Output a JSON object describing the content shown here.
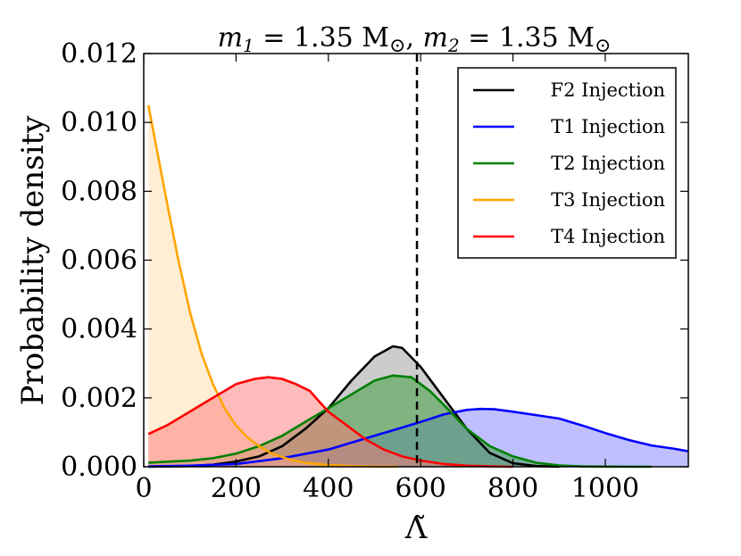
{
  "chart_data": {
    "type": "area",
    "title_parts": {
      "m1": "m",
      "m1_sub": "1",
      "eq1": " = 1.35 M",
      "m2": "m",
      "m2_sub": "2",
      "eq2": " = 1.35 M",
      "sun": "⊙"
    },
    "xlabel": "Λ̃",
    "ylabel": "Probability density",
    "xlim": [
      0,
      1180
    ],
    "ylim": [
      0,
      0.012
    ],
    "xticks": [
      0,
      200,
      400,
      600,
      800,
      1000
    ],
    "xtick_labels": [
      "0",
      "200",
      "400",
      "600",
      "800",
      "1000"
    ],
    "yticks": [
      0,
      0.002,
      0.004,
      0.006,
      0.008,
      0.01,
      0.012
    ],
    "ytick_labels": [
      "0.000",
      "0.002",
      "0.004",
      "0.006",
      "0.008",
      "0.010",
      "0.012"
    ],
    "vline": {
      "x": 592,
      "style": "dashed",
      "color": "#000000"
    },
    "legend_position": "top-right",
    "series": [
      {
        "name": "F2 Injection",
        "color": "#000000",
        "fill": "#999999",
        "points": [
          [
            10,
            0
          ],
          [
            100,
            2e-05
          ],
          [
            150,
            6e-05
          ],
          [
            200,
            0.00015
          ],
          [
            250,
            0.0003
          ],
          [
            300,
            0.0006
          ],
          [
            350,
            0.0011
          ],
          [
            400,
            0.0017
          ],
          [
            450,
            0.0025
          ],
          [
            500,
            0.0032
          ],
          [
            540,
            0.0035
          ],
          [
            560,
            0.00345
          ],
          [
            600,
            0.0029
          ],
          [
            650,
            0.002
          ],
          [
            700,
            0.0011
          ],
          [
            750,
            0.0004
          ],
          [
            800,
            0.0001
          ],
          [
            850,
            2e-05
          ],
          [
            900,
            0
          ]
        ]
      },
      {
        "name": "T1 Injection",
        "color": "#0000ff",
        "fill": "#7f7fff",
        "points": [
          [
            10,
            1e-05
          ],
          [
            100,
            3e-05
          ],
          [
            200,
            8e-05
          ],
          [
            300,
            0.00025
          ],
          [
            400,
            0.0005
          ],
          [
            500,
            0.0009
          ],
          [
            550,
            0.0011
          ],
          [
            600,
            0.0013
          ],
          [
            650,
            0.00152
          ],
          [
            700,
            0.00165
          ],
          [
            730,
            0.00168
          ],
          [
            760,
            0.00167
          ],
          [
            800,
            0.0016
          ],
          [
            850,
            0.0015
          ],
          [
            900,
            0.0014
          ],
          [
            950,
            0.0012
          ],
          [
            1000,
            0.00098
          ],
          [
            1050,
            0.00078
          ],
          [
            1100,
            0.00062
          ],
          [
            1150,
            0.00052
          ],
          [
            1180,
            0.00045
          ]
        ]
      },
      {
        "name": "T2 Injection",
        "color": "#008000",
        "fill": "#339933",
        "points": [
          [
            10,
            0.00012
          ],
          [
            100,
            0.00018
          ],
          [
            150,
            0.00025
          ],
          [
            200,
            0.00038
          ],
          [
            250,
            0.0006
          ],
          [
            300,
            0.0009
          ],
          [
            350,
            0.0013
          ],
          [
            400,
            0.0017
          ],
          [
            450,
            0.0021
          ],
          [
            500,
            0.0025
          ],
          [
            540,
            0.00265
          ],
          [
            580,
            0.0026
          ],
          [
            620,
            0.0022
          ],
          [
            650,
            0.0018
          ],
          [
            700,
            0.0011
          ],
          [
            750,
            0.0006
          ],
          [
            800,
            0.0003
          ],
          [
            850,
            0.00012
          ],
          [
            900,
            4e-05
          ],
          [
            950,
            1e-05
          ],
          [
            1000,
            5e-06
          ],
          [
            1100,
            0
          ]
        ]
      },
      {
        "name": "T3 Injection",
        "color": "#ffa500",
        "fill": "#ffddaa",
        "points": [
          [
            10,
            0.0105
          ],
          [
            30,
            0.0091
          ],
          [
            50,
            0.0077
          ],
          [
            75,
            0.006
          ],
          [
            100,
            0.0045
          ],
          [
            125,
            0.0033
          ],
          [
            150,
            0.0024
          ],
          [
            175,
            0.0017
          ],
          [
            200,
            0.0012
          ],
          [
            225,
            0.00085
          ],
          [
            250,
            0.0006
          ],
          [
            275,
            0.0004
          ],
          [
            300,
            0.00028
          ],
          [
            325,
            0.00018
          ],
          [
            350,
            0.00012
          ],
          [
            400,
            5e-05
          ],
          [
            450,
            2e-05
          ],
          [
            500,
            5e-06
          ],
          [
            550,
            0
          ]
        ]
      },
      {
        "name": "T4 Injection",
        "color": "#ff0000",
        "fill": "#ff7777",
        "points": [
          [
            10,
            0.00095
          ],
          [
            50,
            0.0012
          ],
          [
            100,
            0.0016
          ],
          [
            150,
            0.002
          ],
          [
            200,
            0.0024
          ],
          [
            240,
            0.00255
          ],
          [
            270,
            0.0026
          ],
          [
            300,
            0.00255
          ],
          [
            330,
            0.0024
          ],
          [
            360,
            0.0022
          ],
          [
            380,
            0.0019
          ],
          [
            400,
            0.0016
          ],
          [
            440,
            0.0012
          ],
          [
            480,
            0.0008
          ],
          [
            520,
            0.0005
          ],
          [
            560,
            0.0003
          ],
          [
            600,
            0.00018
          ],
          [
            650,
            8e-05
          ],
          [
            700,
            3e-05
          ],
          [
            750,
            1e-05
          ],
          [
            800,
            0
          ]
        ]
      }
    ]
  }
}
